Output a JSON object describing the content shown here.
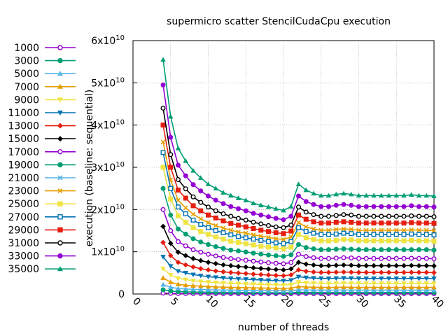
{
  "chart_data": {
    "type": "line",
    "title": "supermicro scatter StencilCudaCpu execution",
    "xlabel": "number of threads",
    "ylabel": "execution (baseline: sequential)",
    "xlim": [
      0,
      40
    ],
    "ylim": [
      0,
      60000000000
    ],
    "x_ticks": [
      "0",
      "5",
      "10",
      "15",
      "20",
      "25",
      "30",
      "35",
      "40"
    ],
    "y_ticks": [
      "0",
      "1x10^10",
      "2x10^10",
      "3x10^10",
      "4x10^10",
      "5x10^10",
      "6x10^10"
    ],
    "grid": true,
    "legend_position": "left",
    "x": [
      4,
      5,
      6,
      7,
      8,
      9,
      10,
      11,
      12,
      13,
      14,
      15,
      16,
      17,
      18,
      19,
      20,
      21,
      22,
      23,
      24,
      25,
      26,
      27,
      28,
      29,
      30,
      31,
      32,
      33,
      34,
      35,
      36,
      37,
      38,
      39,
      40
    ],
    "series": [
      {
        "name": "1000",
        "color": "#9400d3",
        "marker": "circle-open",
        "values": [
          200000000.0,
          150000000.0,
          120000000.0,
          110000000.0,
          100000000.0,
          100000000.0,
          95000000.0,
          92000000.0,
          90000000.0,
          88000000.0,
          86000000.0,
          84000000.0,
          82000000.0,
          80000000.0,
          78000000.0,
          76000000.0,
          75000000.0,
          78000000.0,
          95000000.0,
          90000000.0,
          88000000.0,
          86000000.0,
          86000000.0,
          87000000.0,
          88000000.0,
          87000000.0,
          86000000.0,
          86000000.0,
          86000000.0,
          86000000.0,
          86000000.0,
          86000000.0,
          86000000.0,
          86000000.0,
          86000000.0,
          86000000.0,
          86000000.0
        ]
      },
      {
        "name": "3000",
        "color": "#009e73",
        "marker": "circle",
        "values": [
          1000000000.0,
          700000000.0,
          550000000.0,
          500000000.0,
          460000000.0,
          440000000.0,
          420000000.0,
          400000000.0,
          390000000.0,
          380000000.0,
          370000000.0,
          360000000.0,
          350000000.0,
          340000000.0,
          330000000.0,
          320000000.0,
          310000000.0,
          320000000.0,
          400000000.0,
          380000000.0,
          370000000.0,
          360000000.0,
          360000000.0,
          370000000.0,
          370000000.0,
          370000000.0,
          360000000.0,
          360000000.0,
          360000000.0,
          360000000.0,
          360000000.0,
          360000000.0,
          360000000.0,
          360000000.0,
          360000000.0,
          360000000.0,
          360000000.0
        ]
      },
      {
        "name": "5000",
        "color": "#56b4e9",
        "marker": "triangle",
        "values": [
          2200000000.0,
          1600000000.0,
          1300000000.0,
          1200000000.0,
          1100000000.0,
          1050000000.0,
          1000000000.0,
          960000000.0,
          930000000.0,
          900000000.0,
          880000000.0,
          860000000.0,
          840000000.0,
          820000000.0,
          800000000.0,
          780000000.0,
          770000000.0,
          800000000.0,
          1000000000.0,
          950000000.0,
          920000000.0,
          900000000.0,
          900000000.0,
          910000000.0,
          920000000.0,
          910000000.0,
          900000000.0,
          900000000.0,
          900000000.0,
          900000000.0,
          900000000.0,
          900000000.0,
          900000000.0,
          900000000.0,
          900000000.0,
          900000000.0,
          900000000.0
        ]
      },
      {
        "name": "7000",
        "color": "#e69f00",
        "marker": "triangle",
        "values": [
          3800000000.0,
          2800000000.0,
          2300000000.0,
          2100000000.0,
          1950000000.0,
          1850000000.0,
          1750000000.0,
          1680000000.0,
          1620000000.0,
          1570000000.0,
          1530000000.0,
          1500000000.0,
          1460000000.0,
          1420000000.0,
          1390000000.0,
          1360000000.0,
          1340000000.0,
          1400000000.0,
          1750000000.0,
          1650000000.0,
          1600000000.0,
          1570000000.0,
          1570000000.0,
          1580000000.0,
          1600000000.0,
          1590000000.0,
          1570000000.0,
          1570000000.0,
          1570000000.0,
          1570000000.0,
          1570000000.0,
          1570000000.0,
          1570000000.0,
          1580000000.0,
          1570000000.0,
          1570000000.0,
          1560000000.0
        ]
      },
      {
        "name": "9000",
        "color": "#f0e442",
        "marker": "triangle-down",
        "values": [
          6000000000.0,
          4500000000.0,
          3700000000.0,
          3400000000.0,
          3150000000.0,
          2950000000.0,
          2800000000.0,
          2700000000.0,
          2600000000.0,
          2500000000.0,
          2450000000.0,
          2400000000.0,
          2330000000.0,
          2270000000.0,
          2220000000.0,
          2170000000.0,
          2140000000.0,
          2230000000.0,
          2800000000.0,
          2650000000.0,
          2570000000.0,
          2520000000.0,
          2520000000.0,
          2540000000.0,
          2570000000.0,
          2550000000.0,
          2520000000.0,
          2520000000.0,
          2520000000.0,
          2520000000.0,
          2520000000.0,
          2520000000.0,
          2520000000.0,
          2530000000.0,
          2520000000.0,
          2520000000.0,
          2500000000.0
        ]
      },
      {
        "name": "11000",
        "color": "#0072b2",
        "marker": "triangle-down",
        "values": [
          8800000000.0,
          6600000000.0,
          5400000000.0,
          5000000000.0,
          4600000000.0,
          4350000000.0,
          4100000000.0,
          3950000000.0,
          3800000000.0,
          3670000000.0,
          3580000000.0,
          3500000000.0,
          3400000000.0,
          3320000000.0,
          3250000000.0,
          3180000000.0,
          3130000000.0,
          3270000000.0,
          4100000000.0,
          3880000000.0,
          3760000000.0,
          3680000000.0,
          3680000000.0,
          3720000000.0,
          3760000000.0,
          3730000000.0,
          3680000000.0,
          3680000000.0,
          3680000000.0,
          3680000000.0,
          3680000000.0,
          3680000000.0,
          3680000000.0,
          3700000000.0,
          3680000000.0,
          3680000000.0,
          3650000000.0
        ]
      },
      {
        "name": "13000",
        "color": "#e51e10",
        "marker": "diamond",
        "values": [
          12200000000.0,
          9100000000.0,
          7500000000.0,
          6900000000.0,
          6400000000.0,
          6000000000.0,
          5700000000.0,
          5450000000.0,
          5250000000.0,
          5080000000.0,
          4950000000.0,
          4850000000.0,
          4700000000.0,
          4600000000.0,
          4500000000.0,
          4400000000.0,
          4330000000.0,
          4520000000.0,
          5700000000.0,
          5370000000.0,
          5200000000.0,
          5100000000.0,
          5100000000.0,
          5150000000.0,
          5200000000.0,
          5160000000.0,
          5100000000.0,
          5100000000.0,
          5100000000.0,
          5100000000.0,
          5100000000.0,
          5100000000.0,
          5100000000.0,
          5120000000.0,
          5100000000.0,
          5100000000.0,
          5050000000.0
        ]
      },
      {
        "name": "15000",
        "color": "#000000",
        "marker": "diamond",
        "values": [
          16000000000.0,
          12000000000.0,
          9900000000.0,
          9100000000.0,
          8400000000.0,
          7900000000.0,
          7500000000.0,
          7200000000.0,
          6900000000.0,
          6700000000.0,
          6500000000.0,
          6380000000.0,
          6200000000.0,
          6050000000.0,
          5920000000.0,
          5800000000.0,
          5700000000.0,
          5950000000.0,
          7500000000.0,
          7070000000.0,
          6850000000.0,
          6700000000.0,
          6700000000.0,
          6780000000.0,
          6850000000.0,
          6800000000.0,
          6700000000.0,
          6700000000.0,
          6700000000.0,
          6700000000.0,
          6700000000.0,
          6700000000.0,
          6700000000.0,
          6750000000.0,
          6700000000.0,
          6700000000.0,
          6650000000.0
        ]
      },
      {
        "name": "17000",
        "color": "#9400d3",
        "marker": "circle-open",
        "values": [
          20000000000.0,
          15000000000.0,
          12400000000.0,
          11400000000.0,
          10500000000.0,
          9900000000.0,
          9400000000.0,
          9000000000.0,
          8650000000.0,
          8380000000.0,
          8170000000.0,
          8000000000.0,
          7770000000.0,
          7580000000.0,
          7420000000.0,
          7270000000.0,
          7150000000.0,
          7460000000.0,
          9400000000.0,
          8860000000.0,
          8590000000.0,
          8410000000.0,
          8410000000.0,
          8500000000.0,
          8590000000.0,
          8530000000.0,
          8410000000.0,
          8410000000.0,
          8410000000.0,
          8410000000.0,
          8410000000.0,
          8410000000.0,
          8410000000.0,
          8460000000.0,
          8410000000.0,
          8410000000.0,
          8350000000.0
        ]
      },
      {
        "name": "19000",
        "color": "#009e73",
        "marker": "circle",
        "values": [
          25000000000.0,
          18700000000.0,
          15400000000.0,
          14200000000.0,
          13100000000.0,
          12300000000.0,
          11700000000.0,
          11200000000.0,
          10800000000.0,
          10400000000.0,
          10200000000.0,
          9950000000.0,
          9670000000.0,
          9440000000.0,
          9230000000.0,
          9050000000.0,
          8900000000.0,
          9280000000.0,
          11700000000.0,
          11000000000.0,
          10700000000.0,
          10500000000.0,
          10500000000.0,
          10600000000.0,
          10700000000.0,
          10600000000.0,
          10500000000.0,
          10500000000.0,
          10500000000.0,
          10500000000.0,
          10500000000.0,
          10500000000.0,
          10500000000.0,
          10500000000.0,
          10500000000.0,
          10500000000.0,
          10400000000.0
        ]
      },
      {
        "name": "21000",
        "color": "#56b4e9",
        "marker": "cross",
        "values": [
          30000000000.0,
          22500000000.0,
          18500000000.0,
          17000000000.0,
          15700000000.0,
          14800000000.0,
          14100000000.0,
          13500000000.0,
          13000000000.0,
          12500000000.0,
          12200000000.0,
          11900000000.0,
          11600000000.0,
          11300000000.0,
          11100000000.0,
          10900000000.0,
          10700000000.0,
          11100000000.0,
          14100000000.0,
          13300000000.0,
          12900000000.0,
          12600000000.0,
          12600000000.0,
          12700000000.0,
          12900000000.0,
          12800000000.0,
          12600000000.0,
          12600000000.0,
          12600000000.0,
          12600000000.0,
          12600000000.0,
          12600000000.0,
          12600000000.0,
          12700000000.0,
          12600000000.0,
          12600000000.0,
          12500000000.0
        ]
      },
      {
        "name": "23000",
        "color": "#e69f00",
        "marker": "cross",
        "values": [
          36000000000.0,
          27000000000.0,
          22200000000.0,
          20400000000.0,
          18900000000.0,
          17800000000.0,
          16900000000.0,
          16200000000.0,
          15600000000.0,
          15100000000.0,
          14700000000.0,
          14400000000.0,
          14000000000.0,
          13700000000.0,
          13400000000.0,
          13100000000.0,
          12900000000.0,
          13500000000.0,
          16900000000.0,
          15900000000.0,
          15400000000.0,
          15100000000.0,
          15100000000.0,
          15300000000.0,
          15400000000.0,
          15300000000.0,
          15100000000.0,
          15100000000.0,
          15100000000.0,
          15100000000.0,
          15100000000.0,
          15100000000.0,
          15100000000.0,
          15200000000.0,
          15100000000.0,
          15100000000.0,
          15000000000.0
        ]
      },
      {
        "name": "25000",
        "color": "#f0e442",
        "marker": "square",
        "values": [
          30000000000.0,
          22500000000.0,
          18500000000.0,
          17000000000.0,
          15700000000.0,
          14800000000.0,
          14100000000.0,
          13500000000.0,
          13000000000.0,
          12500000000.0,
          12200000000.0,
          11900000000.0,
          11600000000.0,
          11300000000.0,
          11100000000.0,
          10900000000.0,
          10700000000.0,
          11100000000.0,
          14100000000.0,
          13300000000.0,
          12900000000.0,
          12600000000.0,
          12600000000.0,
          12700000000.0,
          12900000000.0,
          12800000000.0,
          12600000000.0,
          12600000000.0,
          12600000000.0,
          12600000000.0,
          12600000000.0,
          12600000000.0,
          12600000000.0,
          12700000000.0,
          12600000000.0,
          12600000000.0,
          12500000000.0
        ]
      },
      {
        "name": "27000",
        "color": "#0072b2",
        "marker": "square-open",
        "values": [
          33500000000.0,
          25000000000.0,
          20600000000.0,
          19000000000.0,
          17500000000.0,
          16500000000.0,
          15700000000.0,
          15000000000.0,
          14500000000.0,
          14000000000.0,
          13600000000.0,
          13300000000.0,
          13000000000.0,
          12700000000.0,
          12400000000.0,
          12100000000.0,
          11900000000.0,
          12400000000.0,
          15700000000.0,
          14800000000.0,
          14400000000.0,
          14100000000.0,
          14100000000.0,
          14200000000.0,
          14400000000.0,
          14300000000.0,
          14100000000.0,
          14100000000.0,
          14100000000.0,
          14100000000.0,
          14100000000.0,
          14100000000.0,
          14100000000.0,
          14200000000.0,
          14100000000.0,
          14100000000.0,
          14000000000.0
        ]
      },
      {
        "name": "29000",
        "color": "#e51e10",
        "marker": "square",
        "values": [
          40000000000.0,
          30000000000.0,
          24600000000.0,
          22700000000.0,
          20900000000.0,
          19700000000.0,
          18700000000.0,
          18000000000.0,
          17300000000.0,
          16700000000.0,
          16300000000.0,
          15900000000.0,
          15500000000.0,
          15100000000.0,
          14800000000.0,
          14500000000.0,
          14300000000.0,
          14900000000.0,
          18700000000.0,
          17700000000.0,
          17100000000.0,
          16800000000.0,
          16800000000.0,
          17000000000.0,
          17100000000.0,
          17000000000.0,
          16800000000.0,
          16800000000.0,
          16800000000.0,
          16800000000.0,
          16800000000.0,
          16800000000.0,
          16800000000.0,
          16900000000.0,
          16800000000.0,
          16800000000.0,
          16700000000.0
        ]
      },
      {
        "name": "31000",
        "color": "#000000",
        "marker": "circle-open",
        "values": [
          44000000000.0,
          33000000000.0,
          27100000000.0,
          24900000000.0,
          23000000000.0,
          21700000000.0,
          20600000000.0,
          19700000000.0,
          19000000000.0,
          18400000000.0,
          17900000000.0,
          17500000000.0,
          17000000000.0,
          16600000000.0,
          16200000000.0,
          15900000000.0,
          15700000000.0,
          16300000000.0,
          20600000000.0,
          19400000000.0,
          18800000000.0,
          18400000000.0,
          18400000000.0,
          18600000000.0,
          18800000000.0,
          18700000000.0,
          18400000000.0,
          18400000000.0,
          18400000000.0,
          18400000000.0,
          18400000000.0,
          18400000000.0,
          18400000000.0,
          18500000000.0,
          18400000000.0,
          18400000000.0,
          18300000000.0
        ]
      },
      {
        "name": "33000",
        "color": "#9400d3",
        "marker": "circle",
        "values": [
          49500000000.0,
          37100000000.0,
          30500000000.0,
          28000000000.0,
          25900000000.0,
          24400000000.0,
          23200000000.0,
          22200000000.0,
          21400000000.0,
          20700000000.0,
          20200000000.0,
          19700000000.0,
          19100000000.0,
          18700000000.0,
          18300000000.0,
          17900000000.0,
          17600000000.0,
          18400000000.0,
          23200000000.0,
          21900000000.0,
          21200000000.0,
          20700000000.0,
          20700000000.0,
          21000000000.0,
          21200000000.0,
          21000000000.0,
          20700000000.0,
          20700000000.0,
          20700000000.0,
          20700000000.0,
          20700000000.0,
          20700000000.0,
          20700000000.0,
          20900000000.0,
          20700000000.0,
          20700000000.0,
          20600000000.0
        ]
      },
      {
        "name": "35000",
        "color": "#009e73",
        "marker": "triangle",
        "values": [
          55500000000.0,
          42000000000.0,
          34500000000.0,
          31500000000.0,
          29200000000.0,
          27500000000.0,
          26000000000.0,
          25000000000.0,
          24000000000.0,
          23300000000.0,
          22700000000.0,
          22200000000.0,
          21500000000.0,
          21000000000.0,
          20600000000.0,
          20200000000.0,
          19800000000.0,
          20700000000.0,
          26000000000.0,
          24600000000.0,
          23800000000.0,
          23300000000.0,
          23300000000.0,
          23600000000.0,
          23800000000.0,
          23600000000.0,
          23300000000.0,
          23300000000.0,
          23300000000.0,
          23300000000.0,
          23300000000.0,
          23300000000.0,
          23300000000.0,
          23500000000.0,
          23300000000.0,
          23300000000.0,
          23200000000.0
        ]
      }
    ]
  }
}
